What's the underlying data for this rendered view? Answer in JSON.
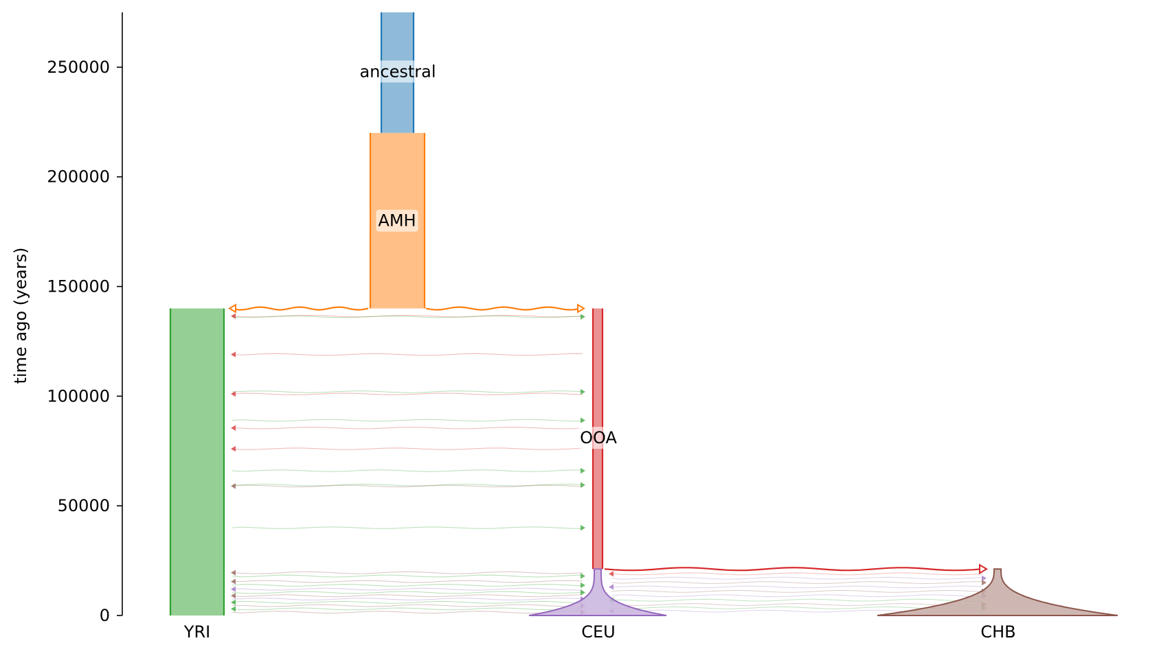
{
  "diagram": {
    "ylabel": "time ago (years)",
    "ylim": [
      0,
      275000
    ],
    "yticks": [
      0,
      50000,
      100000,
      150000,
      200000,
      250000
    ],
    "demes": [
      {
        "name": "ancestral",
        "start": 275000,
        "end": 220000,
        "color": "#1f77b4",
        "fill": "#8fbbd9",
        "label": "ancestral",
        "label_time": 248000
      },
      {
        "name": "AMH",
        "start": 220000,
        "end": 140000,
        "color": "#ff7f0e",
        "fill": "#ffbf86",
        "label": "AMH",
        "label_time": 180000
      },
      {
        "name": "YRI",
        "start": 140000,
        "end": 0,
        "color": "#2ca02c",
        "fill": "#95cf95",
        "label": "YRI"
      },
      {
        "name": "OOA",
        "start": 140000,
        "end": 21200,
        "color": "#d62728",
        "fill": "#ea9293",
        "label": "OOA",
        "label_time": 81000
      },
      {
        "name": "CEU",
        "start": 21200,
        "end": 0,
        "color": "#9467bd",
        "fill": "#c9b3de",
        "label": "CEU"
      },
      {
        "name": "CHB",
        "start": 21200,
        "end": 0,
        "color": "#8c564b",
        "fill": "#c5aaa5",
        "label": "CHB"
      }
    ],
    "splits": [
      {
        "parent": "AMH",
        "children": [
          "YRI",
          "OOA"
        ],
        "time": 140000,
        "color": "#ff7f0e"
      },
      {
        "parent": "OOA",
        "children": [
          "CEU",
          "CHB"
        ],
        "time": 21200,
        "color": "#d62728"
      }
    ],
    "migration_colors": {
      "YRI": "#2ca02c",
      "OOA": "#d62728",
      "CEU": "#9467bd",
      "CHB": "#8c564b"
    }
  }
}
